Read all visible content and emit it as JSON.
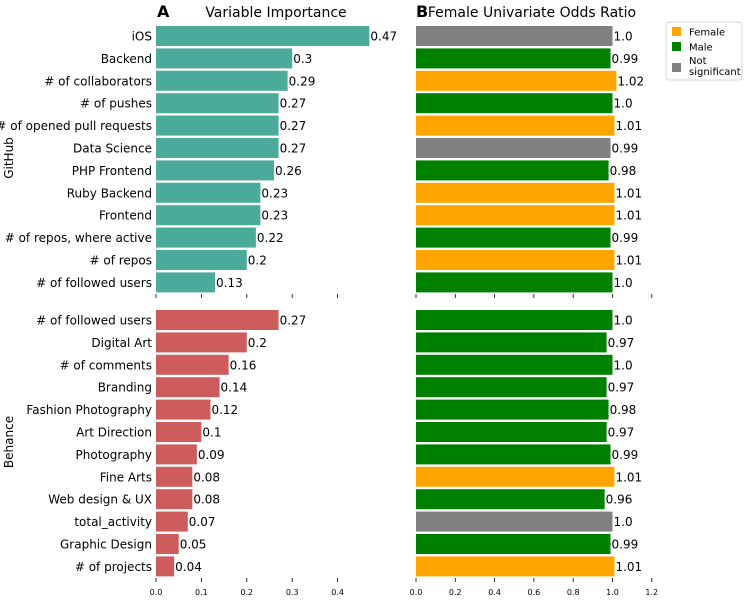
{
  "chart_data": [
    {
      "type": "bar",
      "orientation": "horizontal",
      "panel": "A",
      "title": "Variable Importance",
      "group_label": "GitHub",
      "color": "#4aab9b",
      "xlim": [
        0,
        0.5
      ],
      "ticks": [
        0.0,
        0.1,
        0.2,
        0.3,
        0.4
      ],
      "tick_labels": [
        "0.0",
        "0.1",
        "0.2",
        "0.3",
        "0.4"
      ],
      "categories": [
        "iOS",
        "Backend",
        "# of collaborators",
        "# of pushes",
        "# of opened pull requests",
        "Data Science",
        "PHP Frontend",
        "Ruby Backend",
        "Frontend",
        "# of repos, where active",
        "# of repos",
        "# of followed users"
      ],
      "values": [
        0.47,
        0.3,
        0.29,
        0.27,
        0.27,
        0.27,
        0.26,
        0.23,
        0.23,
        0.22,
        0.2,
        0.13
      ],
      "value_labels": [
        "0.47",
        "0.3",
        "0.29",
        "0.27",
        "0.27",
        "0.27",
        "0.26",
        "0.23",
        "0.23",
        "0.22",
        "0.2",
        "0.13"
      ]
    },
    {
      "type": "bar",
      "orientation": "horizontal",
      "panel": "A",
      "group_label": "Behance",
      "color": "#cd5c5c",
      "xlim": [
        0,
        0.5
      ],
      "ticks": [
        0.0,
        0.1,
        0.2,
        0.3,
        0.4
      ],
      "tick_labels": [
        "0.0",
        "0.1",
        "0.2",
        "0.3",
        "0.4"
      ],
      "categories": [
        "# of followed users",
        "Digital Art",
        "# of comments",
        "Branding",
        "Fashion Photography",
        "Art Direction",
        "Photography",
        "Fine Arts",
        "Web design & UX",
        "total_activity",
        "Graphic Design",
        "# of projects"
      ],
      "values": [
        0.27,
        0.2,
        0.16,
        0.14,
        0.12,
        0.1,
        0.09,
        0.08,
        0.08,
        0.07,
        0.05,
        0.04
      ],
      "value_labels": [
        "0.27",
        "0.2",
        "0.16",
        "0.14",
        "0.12",
        "0.1",
        "0.09",
        "0.08",
        "0.08",
        "0.07",
        "0.05",
        "0.04"
      ]
    },
    {
      "type": "bar",
      "orientation": "horizontal",
      "panel": "B",
      "title": "Female Univariate Odds Ratio",
      "group_label": "GitHub",
      "xlim": [
        0,
        1.2
      ],
      "ticks": [
        0.0,
        0.2,
        0.4,
        0.6,
        0.8,
        1.0,
        1.2
      ],
      "tick_labels": [
        "0.0",
        "0.2",
        "0.4",
        "0.6",
        "0.8",
        "1.0",
        "1.2"
      ],
      "values": [
        1.0,
        0.99,
        1.02,
        1.0,
        1.01,
        0.99,
        0.98,
        1.01,
        1.01,
        0.99,
        1.01,
        1.0
      ],
      "value_labels": [
        "1.0",
        "0.99",
        "1.02",
        "1.0",
        "1.01",
        "0.99",
        "0.98",
        "1.01",
        "1.01",
        "0.99",
        "1.01",
        "1.0"
      ],
      "classes": [
        "ns",
        "male",
        "female",
        "male",
        "female",
        "ns",
        "male",
        "female",
        "female",
        "male",
        "female",
        "male"
      ]
    },
    {
      "type": "bar",
      "orientation": "horizontal",
      "panel": "B",
      "group_label": "Behance",
      "xlim": [
        0,
        1.2
      ],
      "ticks": [
        0.0,
        0.2,
        0.4,
        0.6,
        0.8,
        1.0,
        1.2
      ],
      "tick_labels": [
        "0.0",
        "0.2",
        "0.4",
        "0.6",
        "0.8",
        "1.0",
        "1.2"
      ],
      "values": [
        1.0,
        0.97,
        1.0,
        0.97,
        0.98,
        0.97,
        0.99,
        1.01,
        0.96,
        1.0,
        0.99,
        1.01
      ],
      "value_labels": [
        "1.0",
        "0.97",
        "1.0",
        "0.97",
        "0.98",
        "0.97",
        "0.99",
        "1.01",
        "0.96",
        "1.0",
        "0.99",
        "1.01"
      ],
      "classes": [
        "male",
        "male",
        "male",
        "male",
        "male",
        "male",
        "male",
        "female",
        "male",
        "ns",
        "male",
        "female"
      ]
    }
  ],
  "panel_labels": {
    "a": "A",
    "b": "B"
  },
  "legend": {
    "position": "top-right",
    "entries": [
      {
        "key": "female",
        "label": "Female",
        "color": "#ffa500"
      },
      {
        "key": "male",
        "label": "Male",
        "color": "#008000"
      },
      {
        "key": "ns",
        "label": "Not significant",
        "label_lines": [
          "Not",
          "significant"
        ],
        "color": "#808080"
      }
    ]
  }
}
